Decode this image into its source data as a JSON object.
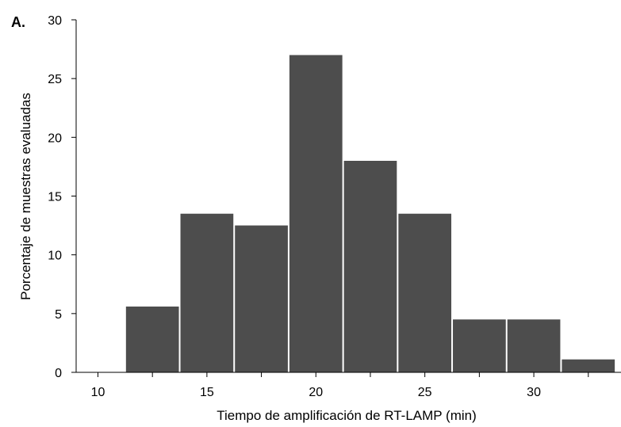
{
  "chart_data": {
    "type": "bar",
    "panel_label": "A.",
    "title": "",
    "xlabel": "Tiempo de amplificación de RT-LAMP (min)",
    "ylabel": "Porcentaje de muestras evaluadas",
    "xlim": [
      9,
      34
    ],
    "ylim": [
      0,
      30
    ],
    "x_ticks": [
      10,
      15,
      20,
      25,
      30
    ],
    "y_ticks": [
      0,
      5,
      10,
      15,
      20,
      25,
      30
    ],
    "bin_width": 2.5,
    "bins": [
      {
        "start": 11.25,
        "end": 13.75,
        "value": 5.6
      },
      {
        "start": 13.75,
        "end": 16.25,
        "value": 13.5
      },
      {
        "start": 16.25,
        "end": 18.75,
        "value": 12.5
      },
      {
        "start": 18.75,
        "end": 21.25,
        "value": 27.0
      },
      {
        "start": 21.25,
        "end": 23.75,
        "value": 18.0
      },
      {
        "start": 23.75,
        "end": 26.25,
        "value": 13.5
      },
      {
        "start": 26.25,
        "end": 28.75,
        "value": 4.5
      },
      {
        "start": 28.75,
        "end": 31.25,
        "value": 4.5
      },
      {
        "start": 31.25,
        "end": 33.75,
        "value": 1.1
      }
    ],
    "bar_color": "#4d4d4d",
    "grid": false,
    "legend": "none"
  }
}
